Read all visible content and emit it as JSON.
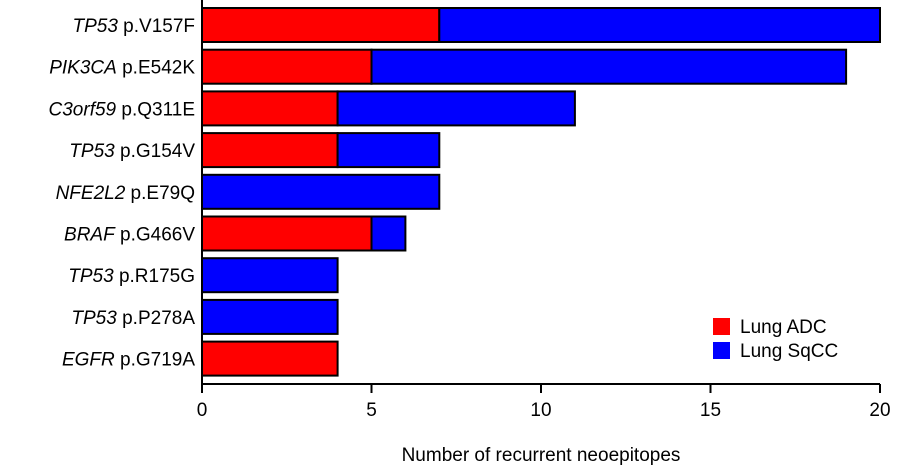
{
  "chart_data": {
    "type": "bar",
    "orientation": "horizontal",
    "stacked": true,
    "categories": [
      {
        "gene": "TP53",
        "mutation": "p.V157F"
      },
      {
        "gene": "PIK3CA",
        "mutation": "p.E542K"
      },
      {
        "gene": "C3orf59",
        "mutation": "p.Q311E"
      },
      {
        "gene": "TP53",
        "mutation": "p.G154V"
      },
      {
        "gene": "NFE2L2",
        "mutation": "p.E79Q"
      },
      {
        "gene": "BRAF",
        "mutation": "p.G466V"
      },
      {
        "gene": "TP53",
        "mutation": "p.R175G"
      },
      {
        "gene": "TP53",
        "mutation": "p.P278A"
      },
      {
        "gene": "EGFR",
        "mutation": "p.G719A"
      }
    ],
    "series": [
      {
        "name": "Lung ADC",
        "color": "#ff0000",
        "values": [
          7,
          5,
          4,
          4,
          0,
          5,
          0,
          0,
          4
        ]
      },
      {
        "name": "Lung SqCC",
        "color": "#0000ff",
        "values": [
          13,
          14,
          7,
          3,
          7,
          1,
          4,
          4,
          0
        ]
      }
    ],
    "xlabel": "Number of recurrent neoepitopes",
    "xlim": [
      0,
      20
    ],
    "xticks": [
      "0",
      "5",
      "10",
      "15",
      "20"
    ],
    "grid": false,
    "legend": "bottom-right"
  }
}
